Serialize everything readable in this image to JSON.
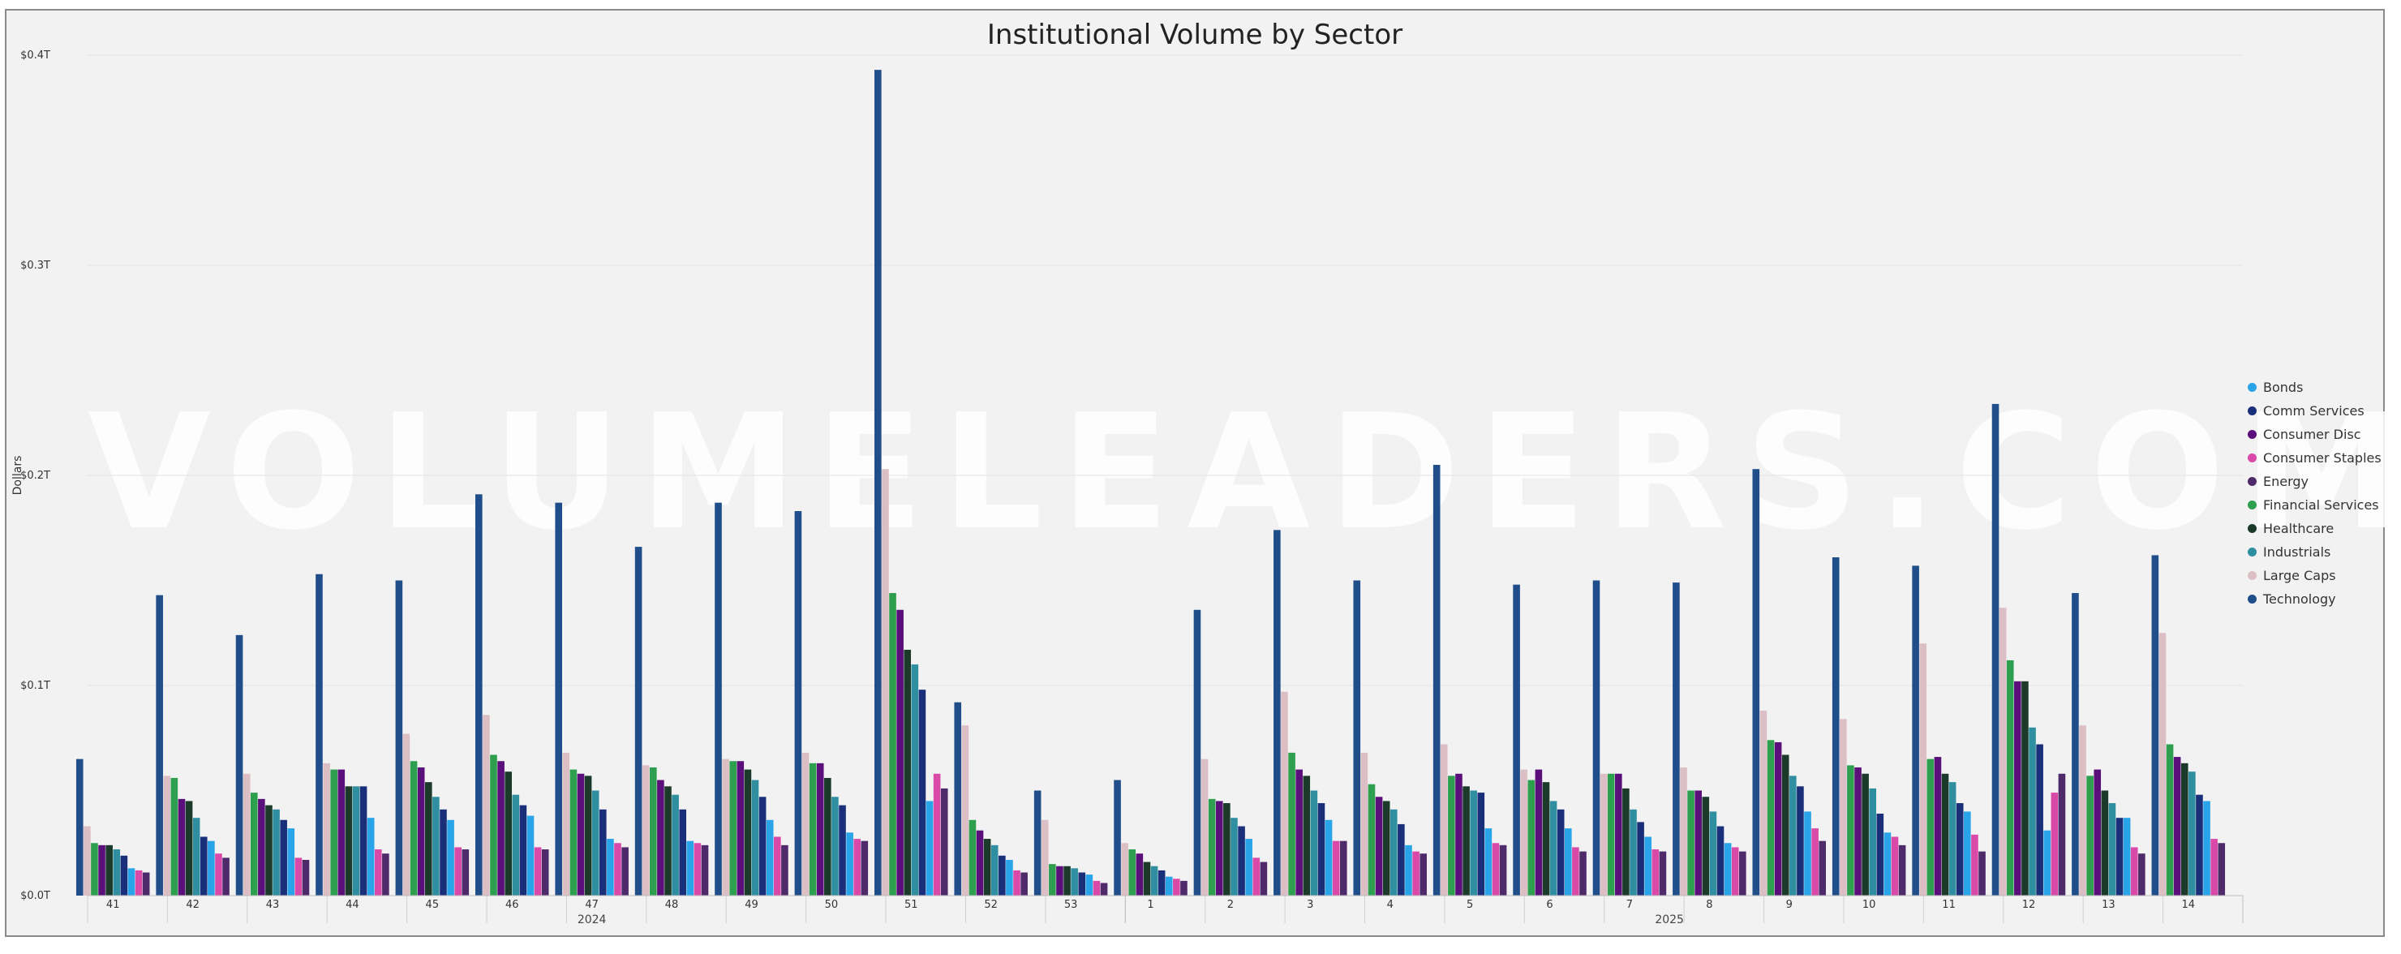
{
  "chart_data": {
    "type": "bar",
    "title": "Institutional Volume by Sector",
    "ylabel": "Dollars",
    "xlabel": "",
    "ylim": [
      0,
      0.4
    ],
    "yticks": [
      "$0.0T",
      "$0.1T",
      "$0.2T",
      "$0.3T",
      "$0.4T"
    ],
    "ytick_values": [
      0,
      0.1,
      0.2,
      0.3,
      0.4
    ],
    "categories": [
      "41",
      "42",
      "43",
      "44",
      "45",
      "46",
      "47",
      "48",
      "49",
      "50",
      "51",
      "52",
      "53",
      "1",
      "2",
      "3",
      "4",
      "5",
      "6",
      "7",
      "8",
      "9",
      "10",
      "11",
      "12",
      "13",
      "14"
    ],
    "year_groups": [
      {
        "label": "2024",
        "start": 0,
        "end": 12
      },
      {
        "label": "2025",
        "start": 13,
        "end": 26
      }
    ],
    "watermark": "VOLUMELEADERS.COM",
    "legend_position": "right",
    "series": [
      {
        "name": "Technology",
        "color": "#1f4e8a",
        "values": [
          0.065,
          0.143,
          0.124,
          0.153,
          0.15,
          0.191,
          0.187,
          0.166,
          0.187,
          0.183,
          0.393,
          0.092,
          0.05,
          0.055,
          0.136,
          0.174,
          0.15,
          0.205,
          0.148,
          0.15,
          0.149,
          0.203,
          0.161,
          0.157,
          0.234,
          0.144,
          0.162
        ]
      },
      {
        "name": "Large Caps",
        "color": "#dcbfc4",
        "values": [
          0.033,
          0.057,
          0.058,
          0.063,
          0.077,
          0.086,
          0.068,
          0.062,
          0.065,
          0.068,
          0.203,
          0.081,
          0.036,
          0.025,
          0.065,
          0.097,
          0.068,
          0.072,
          0.06,
          0.058,
          0.061,
          0.088,
          0.084,
          0.12,
          0.137,
          0.081,
          0.125
        ]
      },
      {
        "name": "Financial Services",
        "color": "#2e9e4f",
        "values": [
          0.025,
          0.056,
          0.049,
          0.06,
          0.064,
          0.067,
          0.06,
          0.061,
          0.064,
          0.063,
          0.144,
          0.036,
          0.015,
          0.022,
          0.046,
          0.068,
          0.053,
          0.057,
          0.055,
          0.058,
          0.05,
          0.074,
          0.062,
          0.065,
          0.112,
          0.057,
          0.072
        ]
      },
      {
        "name": "Consumer Disc",
        "color": "#5b0f7a",
        "values": [
          0.024,
          0.046,
          0.046,
          0.06,
          0.061,
          0.064,
          0.058,
          0.055,
          0.064,
          0.063,
          0.136,
          0.031,
          0.014,
          0.02,
          0.045,
          0.06,
          0.047,
          0.058,
          0.06,
          0.058,
          0.05,
          0.073,
          0.061,
          0.066,
          0.102,
          0.06,
          0.066
        ]
      },
      {
        "name": "Healthcare",
        "color": "#1b3a2a",
        "values": [
          0.024,
          0.045,
          0.043,
          0.052,
          0.054,
          0.059,
          0.057,
          0.052,
          0.06,
          0.056,
          0.117,
          0.027,
          0.014,
          0.016,
          0.044,
          0.057,
          0.045,
          0.052,
          0.054,
          0.051,
          0.047,
          0.067,
          0.058,
          0.058,
          0.102,
          0.05,
          0.063
        ]
      },
      {
        "name": "Industrials",
        "color": "#2f8fa0",
        "values": [
          0.022,
          0.037,
          0.041,
          0.052,
          0.047,
          0.048,
          0.05,
          0.048,
          0.055,
          0.047,
          0.11,
          0.024,
          0.013,
          0.014,
          0.037,
          0.05,
          0.041,
          0.05,
          0.045,
          0.041,
          0.04,
          0.057,
          0.051,
          0.054,
          0.08,
          0.044,
          0.059
        ]
      },
      {
        "name": "Comm Services",
        "color": "#1a2f7a",
        "values": [
          0.019,
          0.028,
          0.036,
          0.052,
          0.041,
          0.043,
          0.041,
          0.041,
          0.047,
          0.043,
          0.098,
          0.019,
          0.011,
          0.012,
          0.033,
          0.044,
          0.034,
          0.049,
          0.041,
          0.035,
          0.033,
          0.052,
          0.039,
          0.044,
          0.072,
          0.037,
          0.048
        ]
      },
      {
        "name": "Bonds",
        "color": "#2aa4e8",
        "values": [
          0.013,
          0.026,
          0.032,
          0.037,
          0.036,
          0.038,
          0.027,
          0.026,
          0.036,
          0.03,
          0.045,
          0.017,
          0.01,
          0.009,
          0.027,
          0.036,
          0.024,
          0.032,
          0.032,
          0.028,
          0.025,
          0.04,
          0.03,
          0.04,
          0.031,
          0.037,
          0.045
        ]
      },
      {
        "name": "Consumer Staples",
        "color": "#d94aa8",
        "values": [
          0.012,
          0.02,
          0.018,
          0.022,
          0.023,
          0.023,
          0.025,
          0.025,
          0.028,
          0.027,
          0.058,
          0.012,
          0.007,
          0.008,
          0.018,
          0.026,
          0.021,
          0.025,
          0.023,
          0.022,
          0.023,
          0.032,
          0.028,
          0.029,
          0.049,
          0.023,
          0.027
        ]
      },
      {
        "name": "Energy",
        "color": "#4f2a6a",
        "values": [
          0.011,
          0.018,
          0.017,
          0.02,
          0.022,
          0.022,
          0.023,
          0.024,
          0.024,
          0.026,
          0.051,
          0.011,
          0.006,
          0.007,
          0.016,
          0.026,
          0.02,
          0.024,
          0.021,
          0.021,
          0.021,
          0.026,
          0.024,
          0.021,
          0.058,
          0.02,
          0.025
        ]
      }
    ],
    "legend_order": [
      "Bonds",
      "Comm Services",
      "Consumer Disc",
      "Consumer Staples",
      "Energy",
      "Financial Services",
      "Healthcare",
      "Industrials",
      "Large Caps",
      "Technology"
    ]
  }
}
